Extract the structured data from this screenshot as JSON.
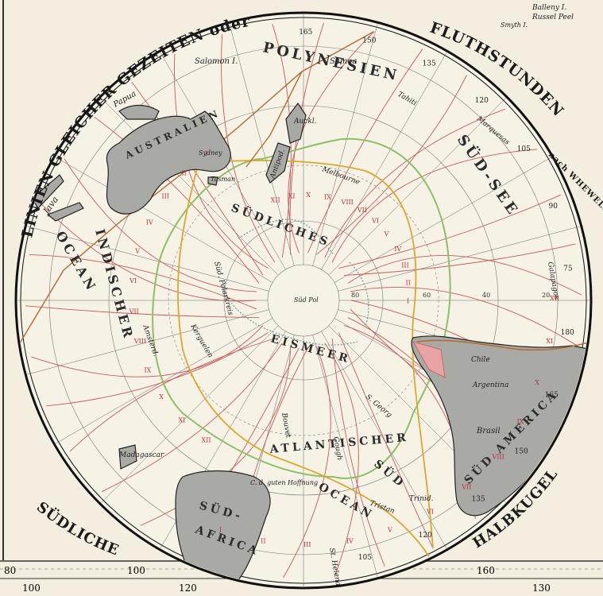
{
  "title_arc": {
    "left": "LINIEN GLEICHER GEZEITEN oder",
    "right": "FLUTHSTUNDEN",
    "right_small": "nach WHEWELL",
    "bottom_left": "SÜDLICHE",
    "bottom_right": "HALBKUGEL"
  },
  "regions": {
    "australia": "AUSTRALIEN",
    "africa_1": "SÜD-",
    "africa_2": "AFRICA",
    "south_america": "SÜD AMERICA",
    "polynesia": "POLYNESIEN",
    "suedsee": "SÜD-SEE",
    "indian_ocean_1": "OCEAN",
    "indian_ocean_2": "INDISCHER",
    "atlantic": "ATLANTISCHER",
    "atlantic_2": "OCEAN",
    "sud": "SÜD",
    "south_sea_1": "SÜDLICHES",
    "south_sea_2": "EISMEER"
  },
  "places": {
    "java": "Java",
    "papua": "Papua",
    "salomon": "Salomon I.",
    "samoa": "Samoa",
    "marquesas": "Marquesas",
    "tahiti": "Tahiti",
    "melbourne": "Melbourne",
    "auckland": "Auckl.",
    "antipod": "Antipod.",
    "madagascar": "Madagascar",
    "argentina": "Argentina",
    "chile": "Chile",
    "brasil": "Brasil",
    "galapagos": "Galapagos",
    "st_helena": "St. Helena",
    "tristan": "Tristan",
    "gough": "Gough",
    "bouvet": "Bouvet",
    "trinid": "Trinid.",
    "s_georg": "S. Georg",
    "kerguelen": "Kerguelen",
    "amsterdam": "Amsterd.",
    "cap": "C. d. guten Hoffnung",
    "ballenyi": "Balleny I.",
    "russel": "Russel Peel",
    "smyth": "Smyth I.",
    "polar_circle": "Süd. Polarkreis",
    "sydney": "Sydney",
    "tasman": "Tasman"
  },
  "pole_label": "Süd Pol",
  "rim_longitudes": [
    "165",
    "150",
    "135",
    "120",
    "105",
    "90",
    "75",
    "180",
    "165",
    "150",
    "135",
    "120",
    "105"
  ],
  "bottom_scale_upper": [
    "80",
    "100",
    "160"
  ],
  "bottom_scale_lower": [
    "100",
    "120",
    "130"
  ],
  "lat_labels": [
    "80",
    "60",
    "40",
    "20"
  ],
  "tide_numerals": [
    "XII",
    "XI",
    "X",
    "IX",
    "VIII",
    "VII",
    "VI",
    "V",
    "IV",
    "III",
    "II",
    "I"
  ],
  "colors": {
    "paper": "#f3eedf",
    "land": "#a9a9a6",
    "cotidal": "#c65a5a",
    "route": "#b36a2e",
    "ice_limit": "#8cc067",
    "yellow_line": "#d9a92e"
  }
}
